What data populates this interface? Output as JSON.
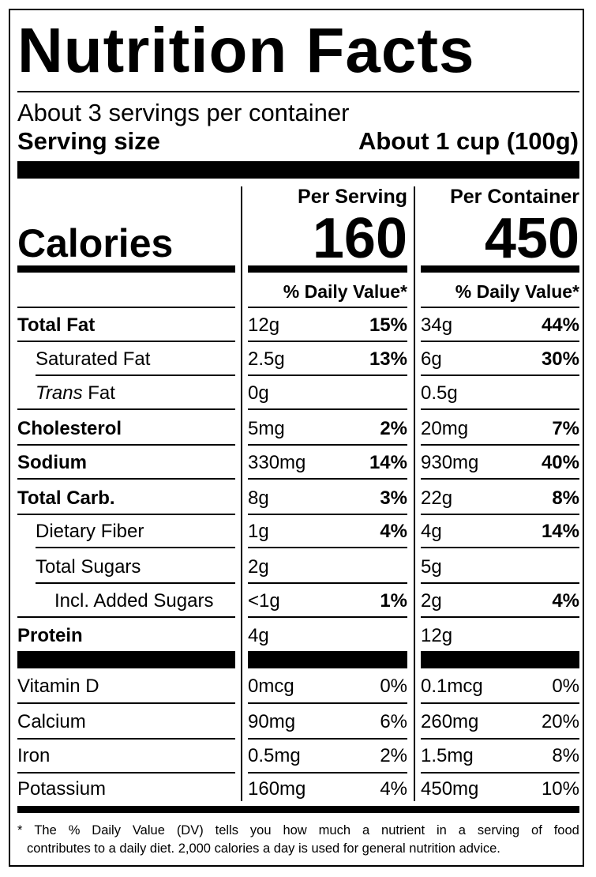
{
  "title": "Nutrition Facts",
  "servings_per_container": "About 3 servings per container",
  "serving_size_label": "Serving size",
  "serving_size_value": "About 1 cup (100g)",
  "columns": {
    "per_serving": "Per Serving",
    "per_container": "Per Container"
  },
  "calories": {
    "label": "Calories",
    "per_serving": "160",
    "per_container": "450"
  },
  "dv_header": "% Daily Value*",
  "nutrients": [
    {
      "label": "Total Fat",
      "bold": true,
      "indent": 0,
      "s_amt": "12g",
      "s_pct": "15%",
      "c_amt": "34g",
      "c_pct": "44%"
    },
    {
      "label": "Saturated Fat",
      "bold": false,
      "indent": 1,
      "s_amt": "2.5g",
      "s_pct": "13%",
      "c_amt": "6g",
      "c_pct": "30%"
    },
    {
      "label_italic": "Trans",
      "label_rest": " Fat",
      "bold": false,
      "indent": 1,
      "s_amt": "0g",
      "s_pct": "",
      "c_amt": "0.5g",
      "c_pct": ""
    },
    {
      "label": "Cholesterol",
      "bold": true,
      "indent": 0,
      "s_amt": "5mg",
      "s_pct": "2%",
      "c_amt": "20mg",
      "c_pct": "7%"
    },
    {
      "label": "Sodium",
      "bold": true,
      "indent": 0,
      "s_amt": "330mg",
      "s_pct": "14%",
      "c_amt": "930mg",
      "c_pct": "40%"
    },
    {
      "label": "Total Carb.",
      "bold": true,
      "indent": 0,
      "s_amt": "8g",
      "s_pct": "3%",
      "c_amt": "22g",
      "c_pct": "8%"
    },
    {
      "label": "Dietary Fiber",
      "bold": false,
      "indent": 1,
      "s_amt": "1g",
      "s_pct": "4%",
      "c_amt": "4g",
      "c_pct": "14%"
    },
    {
      "label": "Total Sugars",
      "bold": false,
      "indent": 1,
      "s_amt": "2g",
      "s_pct": "",
      "c_amt": "5g",
      "c_pct": ""
    },
    {
      "label": "Incl. Added Sugars",
      "bold": false,
      "indent": 2,
      "s_amt": "<1g",
      "s_pct": "1%",
      "c_amt": "2g",
      "c_pct": "4%"
    },
    {
      "label": "Protein",
      "bold": true,
      "indent": 0,
      "s_amt": "4g",
      "s_pct": "",
      "c_amt": "12g",
      "c_pct": ""
    }
  ],
  "vitamins": [
    {
      "label": "Vitamin D",
      "s_amt": "0mcg",
      "s_pct": "0%",
      "c_amt": "0.1mcg",
      "c_pct": "0%"
    },
    {
      "label": "Calcium",
      "s_amt": "90mg",
      "s_pct": "6%",
      "c_amt": "260mg",
      "c_pct": "20%"
    },
    {
      "label": "Iron",
      "s_amt": "0.5mg",
      "s_pct": "2%",
      "c_amt": "1.5mg",
      "c_pct": "8%"
    },
    {
      "label": "Potassium",
      "s_amt": "160mg",
      "s_pct": "4%",
      "c_amt": "450mg",
      "c_pct": "10%"
    }
  ],
  "footnote": {
    "line1_words": [
      "*",
      "The",
      "%",
      "Daily",
      "Value",
      "(DV)",
      "tells",
      "you",
      "how",
      "much",
      "a",
      "nutrient",
      "in",
      "a",
      "serving",
      "of",
      "food"
    ],
    "line2": "contributes to a daily diet. 2,000 calories a day is used for general nutrition advice."
  }
}
